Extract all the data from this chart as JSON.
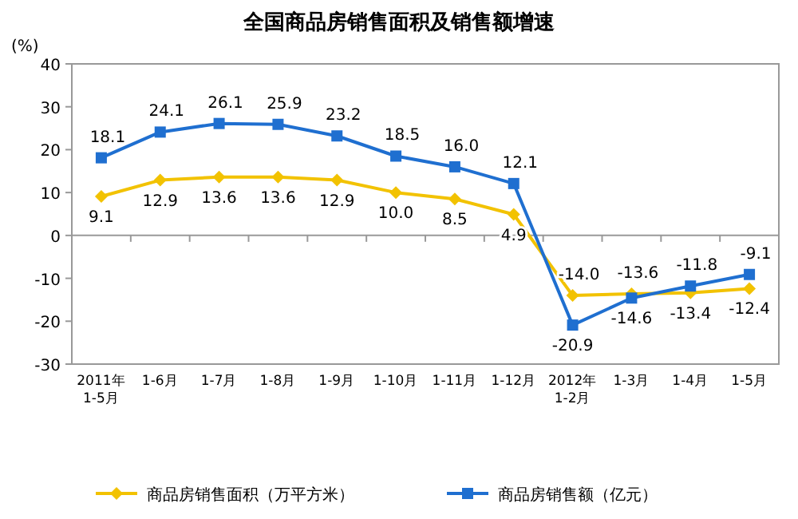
{
  "chart_data": {
    "type": "line",
    "title": "全国商品房销售面积及销售额增速",
    "ylabel": "(%)",
    "categories": [
      "2011年\n1-5月",
      "1-6月",
      "1-7月",
      "1-8月",
      "1-9月",
      "1-10月",
      "1-11月",
      "1-12月",
      "2012年\n1-2月",
      "1-3月",
      "1-4月",
      "1-5月"
    ],
    "series": [
      {
        "name": "商品房销售面积（万平方米）",
        "color": "#f2c200",
        "marker": "diamond",
        "values": [
          9.1,
          12.9,
          13.6,
          13.6,
          12.9,
          10.0,
          8.5,
          4.9,
          -14.0,
          -13.6,
          -13.4,
          -12.4
        ],
        "value_labels": [
          "9.1",
          "12.9",
          "13.6",
          "13.6",
          "12.9",
          "10.0",
          "8.5",
          "4.9",
          "-14.0",
          "-13.6",
          "-13.4",
          "-12.4"
        ]
      },
      {
        "name": "商品房销售额（亿元）",
        "color": "#1f6fd0",
        "marker": "square",
        "values": [
          18.1,
          24.1,
          26.1,
          25.9,
          23.2,
          18.5,
          16.0,
          12.1,
          -20.9,
          -14.6,
          -11.8,
          -9.1
        ],
        "value_labels": [
          "18.1",
          "24.1",
          "26.1",
          "25.9",
          "23.2",
          "18.5",
          "16.0",
          "12.1",
          "-20.9",
          "-14.6",
          "-11.8",
          "-9.1"
        ]
      }
    ],
    "ylim": [
      -30,
      40
    ],
    "yticks": [
      -30,
      -20,
      -10,
      0,
      10,
      20,
      30,
      40
    ],
    "legend": "bottom"
  }
}
